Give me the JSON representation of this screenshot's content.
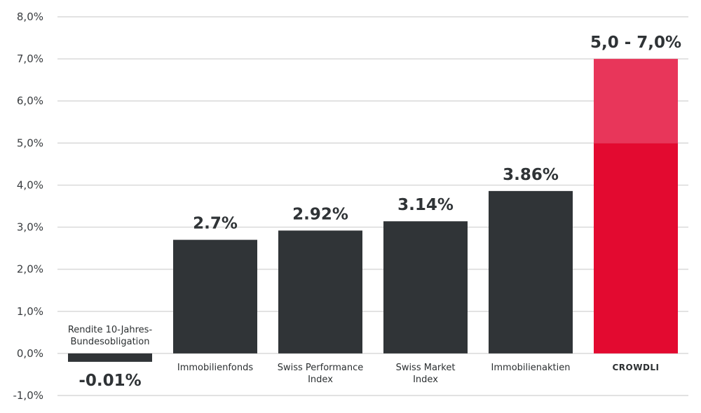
{
  "colors": {
    "bar": "#303437",
    "accent": "#e30a30",
    "accent_light": "#e8365a",
    "grid": "#d9d9d9",
    "text": "#2f3336"
  },
  "chart_data": {
    "type": "bar",
    "title": "",
    "xlabel": "",
    "ylabel": "",
    "ylim": [
      -1.0,
      8.0
    ],
    "grid": true,
    "y_ticks": [
      "8,0%",
      "7,0%",
      "6,0%",
      "5,0%",
      "4,0%",
      "3,0%",
      "2,0%",
      "1,0%",
      "0,0%",
      "-1,0%"
    ],
    "y_tick_values": [
      8,
      7,
      6,
      5,
      4,
      3,
      2,
      1,
      0,
      -1
    ],
    "categories": [
      [
        "Rendite 10-Jahres-",
        "Bundesobligation"
      ],
      [
        "Immobilienfonds"
      ],
      [
        "Swiss Performance",
        "Index"
      ],
      [
        "Swiss Market",
        "Index"
      ],
      [
        "Immobilienaktien"
      ],
      [
        "CROWDLI"
      ]
    ],
    "values": [
      -0.01,
      2.7,
      2.92,
      3.14,
      3.86,
      7.0
    ],
    "value_labels": [
      "-0.01%",
      "2.7%",
      "2.92%",
      "3.14%",
      "3.86%",
      "5,0 - 7,0%"
    ],
    "highlight": {
      "category_index": 5,
      "range": [
        5.0,
        7.0
      ]
    }
  }
}
